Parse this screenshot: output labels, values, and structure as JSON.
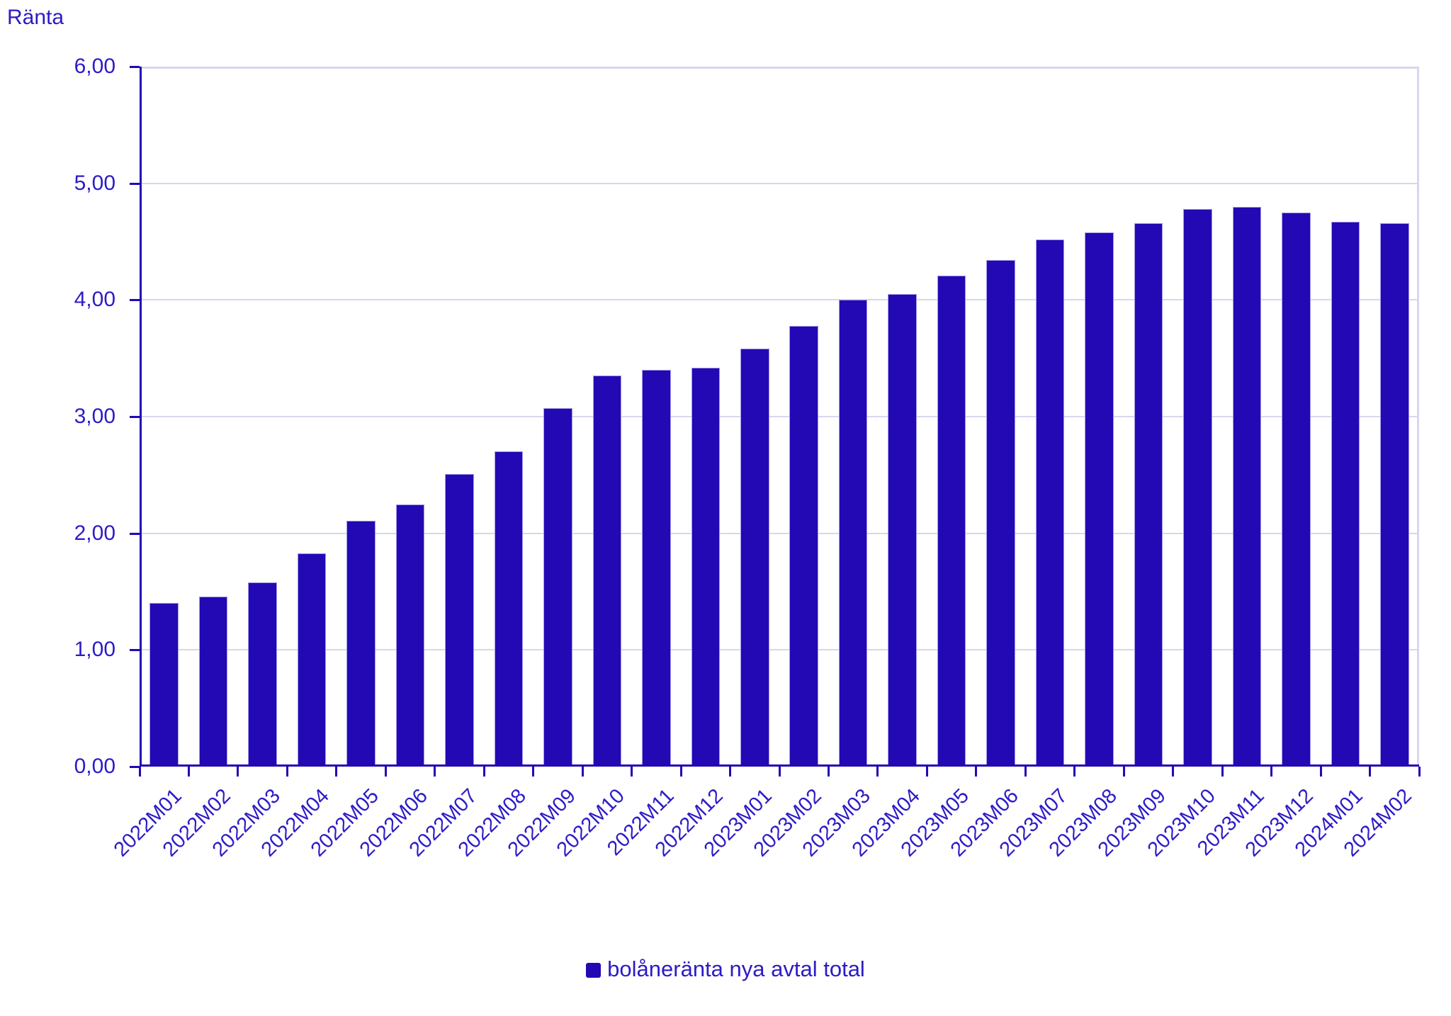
{
  "chart_data": {
    "type": "bar",
    "title": "Ränta",
    "categories": [
      "2022M01",
      "2022M02",
      "2022M03",
      "2022M04",
      "2022M05",
      "2022M06",
      "2022M07",
      "2022M08",
      "2022M09",
      "2022M10",
      "2022M11",
      "2022M12",
      "2023M01",
      "2023M02",
      "2023M03",
      "2023M04",
      "2023M05",
      "2023M06",
      "2023M07",
      "2023M08",
      "2023M09",
      "2023M10",
      "2023M11",
      "2023M12",
      "2024M01",
      "2024M02"
    ],
    "series": [
      {
        "name": "bolåneränta nya avtal total",
        "values": [
          1.4,
          1.46,
          1.58,
          1.83,
          2.11,
          2.25,
          2.51,
          2.7,
          3.07,
          3.35,
          3.4,
          3.42,
          3.58,
          3.78,
          4.0,
          4.05,
          4.21,
          4.34,
          4.52,
          4.58,
          4.66,
          4.78,
          4.8,
          4.75,
          4.67,
          4.66
        ]
      }
    ],
    "xlabel": "",
    "ylabel": "Ränta",
    "ylim": [
      0,
      6
    ],
    "ytick_step": 1,
    "ytick_labels": [
      "0,00",
      "1,00",
      "2,00",
      "3,00",
      "4,00",
      "5,00",
      "6,00"
    ],
    "grid": true,
    "legend_position": "bottom",
    "x_labels_rotation_deg": -45,
    "colors": {
      "bar": "#2209B4",
      "bar_border": "#A39BE8",
      "axis": "#2209B4",
      "ink": "#2C1BC6",
      "grid": "#D9D7EE",
      "background": "#FFFFFF"
    }
  }
}
